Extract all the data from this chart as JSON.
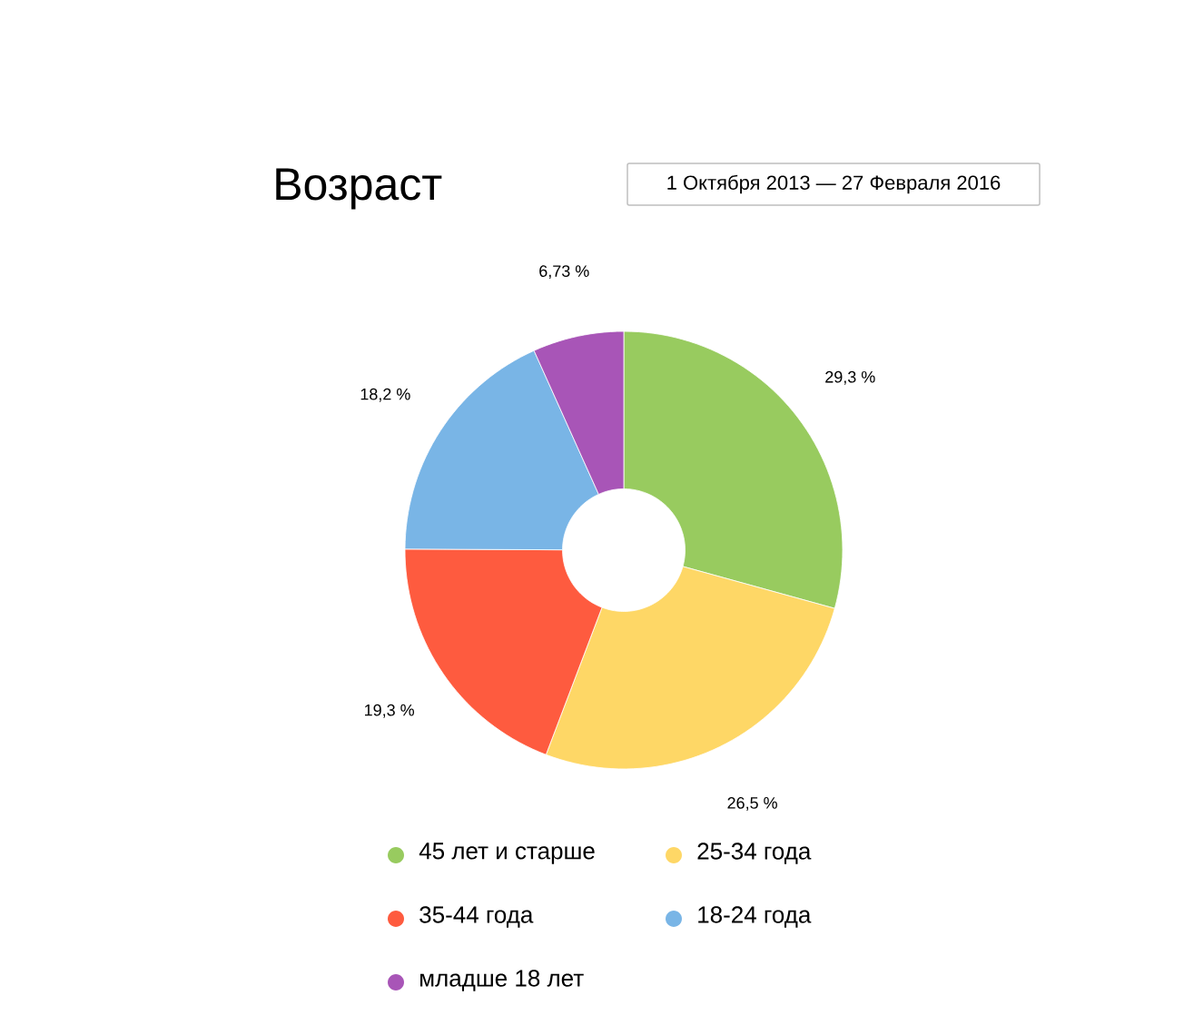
{
  "chart_data": {
    "type": "donut",
    "title": "Возраст",
    "subtitle": "1 Октября 2013 — 27 Февраля 2016",
    "categories": [
      "45 лет и старше",
      "25-34 года",
      "35-44 года",
      "18-24 года",
      "младше 18 лет"
    ],
    "values": [
      29.3,
      26.5,
      19.3,
      18.2,
      6.73
    ],
    "value_labels": [
      "29,3 %",
      "26,5 %",
      "19,3 %",
      "18,2 %",
      "6,73 %"
    ],
    "colors": [
      "#98cb5f",
      "#fed766",
      "#fe5b3f",
      "#79b5e6",
      "#a855b7"
    ],
    "legend": "bottom"
  }
}
